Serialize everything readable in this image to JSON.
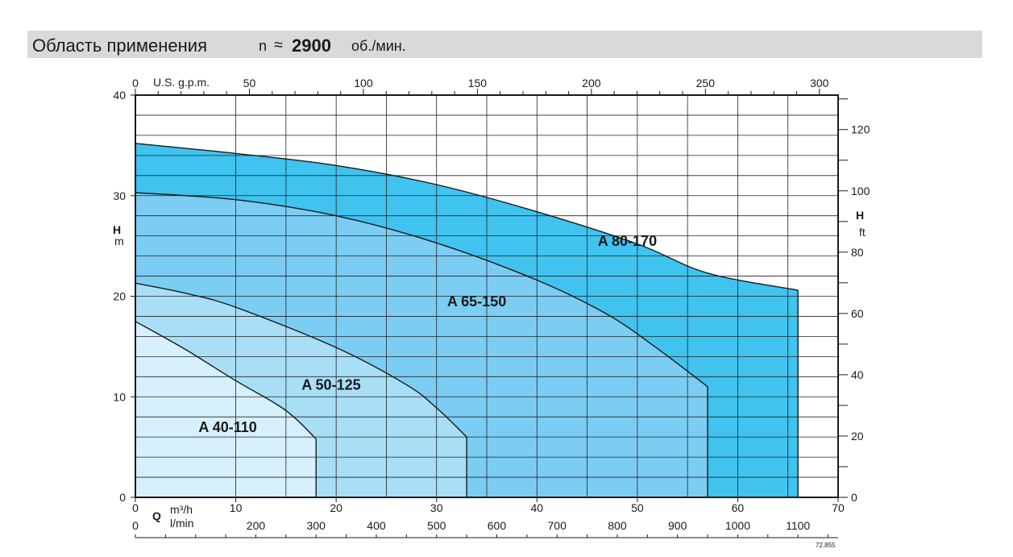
{
  "header": {
    "title": "Область применения",
    "n_symbol": "n",
    "approx": "≈",
    "speed": "2900",
    "unit": "об./мин."
  },
  "reference": "72.855",
  "colors": {
    "A 40-110": "#d6f0fc",
    "A 50-125": "#a8dff7",
    "A 65-150": "#7ccdf3",
    "A 80-170": "#40c3ef",
    "header_bg": "#d9d9d9"
  },
  "chart_data": {
    "type": "area",
    "x": {
      "label": "Q",
      "unit": "m³/h",
      "range": [
        0,
        70
      ],
      "ticks": [
        0,
        10,
        20,
        30,
        40,
        50,
        60,
        70
      ]
    },
    "x_lmin": {
      "unit": "l/min",
      "ticks": [
        0,
        200,
        300,
        400,
        500,
        600,
        700,
        800,
        900,
        1000,
        1100
      ]
    },
    "x_gpm": {
      "unit": "U.S. g.p.m.",
      "ticks": [
        0,
        50,
        100,
        150,
        200,
        250,
        300
      ]
    },
    "y": {
      "label": "H",
      "unit": "m",
      "range": [
        0,
        40
      ],
      "ticks": [
        0,
        10,
        20,
        30,
        40
      ]
    },
    "y_ft": {
      "label": "H",
      "unit": "ft",
      "ticks": [
        0,
        20,
        40,
        60,
        80,
        100,
        120
      ]
    },
    "grid": true,
    "series": [
      {
        "name": "A 80-170",
        "points": [
          [
            0,
            35.2
          ],
          [
            10,
            34.2
          ],
          [
            20,
            33.0
          ],
          [
            30,
            31.1
          ],
          [
            40,
            28.4
          ],
          [
            50,
            25.2
          ],
          [
            57,
            22.3
          ],
          [
            66,
            20.6
          ]
        ],
        "qmax": 66
      },
      {
        "name": "A 65-150",
        "points": [
          [
            0,
            30.3
          ],
          [
            10,
            29.6
          ],
          [
            20,
            28.0
          ],
          [
            30,
            25.3
          ],
          [
            40,
            21.6
          ],
          [
            47,
            18.2
          ],
          [
            52,
            14.8
          ],
          [
            57,
            11.0
          ]
        ],
        "qmax": 57
      },
      {
        "name": "A 50-125",
        "points": [
          [
            0,
            21.3
          ],
          [
            5,
            20.3
          ],
          [
            10,
            18.9
          ],
          [
            20,
            14.9
          ],
          [
            27,
            11.2
          ],
          [
            30,
            8.9
          ],
          [
            33,
            6.0
          ]
        ],
        "qmax": 33
      },
      {
        "name": "A 40-110",
        "points": [
          [
            0,
            17.5
          ],
          [
            5,
            14.7
          ],
          [
            10,
            11.6
          ],
          [
            14,
            9.3
          ],
          [
            16,
            7.8
          ],
          [
            18,
            5.8
          ]
        ],
        "qmax": 18
      }
    ]
  }
}
